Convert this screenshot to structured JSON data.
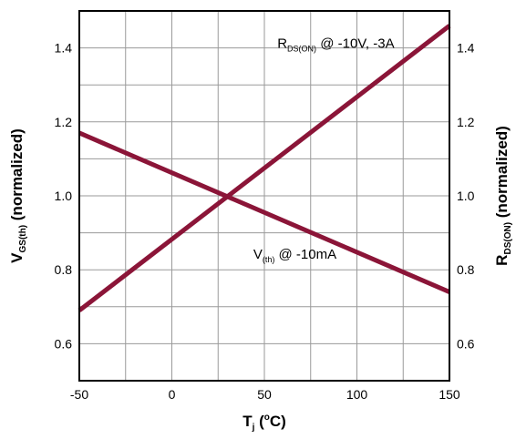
{
  "chart_data": {
    "type": "line",
    "x": [
      -50,
      150
    ],
    "xlim": [
      -50,
      150
    ],
    "ylim": [
      0.5,
      1.5
    ],
    "y2lim": [
      0.5,
      1.5
    ],
    "grid": true,
    "xticks": [
      -50,
      0,
      50,
      100,
      150
    ],
    "yticks": [
      0.6,
      0.8,
      1.0,
      1.2,
      1.4
    ],
    "xtick_labels": [
      "-50",
      "0",
      "50",
      "100",
      "150"
    ],
    "ytick_labels": [
      "0.6",
      "0.8",
      "1.0",
      "1.2",
      "1.4"
    ],
    "y2tick_labels": [
      "0.6",
      "0.8",
      "1.0",
      "1.2",
      "1.4"
    ],
    "xlabel": {
      "main": "T",
      "sub": "j",
      "rest": " (",
      "sup": "o",
      "end": "C)"
    },
    "ylabel": {
      "main": "V",
      "sub": "GS(th)",
      "rest": " (normalized)"
    },
    "y2label": {
      "main": "R",
      "sub": "DS(ON)",
      "rest": " (normalized)"
    },
    "line_color": "#8b1538",
    "series": [
      {
        "x": [
          -50,
          150
        ],
        "y": [
          0.69,
          1.46
        ],
        "axis": "right"
      },
      {
        "x": [
          -50,
          150
        ],
        "y": [
          1.17,
          0.74
        ],
        "axis": "left"
      }
    ],
    "annotations": [
      {
        "main": "R",
        "sub": "DS(ON)",
        "rest": " @ -10V, -3A",
        "x": 57,
        "y": 1.4
      },
      {
        "main": "V",
        "sub": "(th)",
        "rest": " @ -10mA",
        "x": 44,
        "y": 0.83
      }
    ]
  }
}
